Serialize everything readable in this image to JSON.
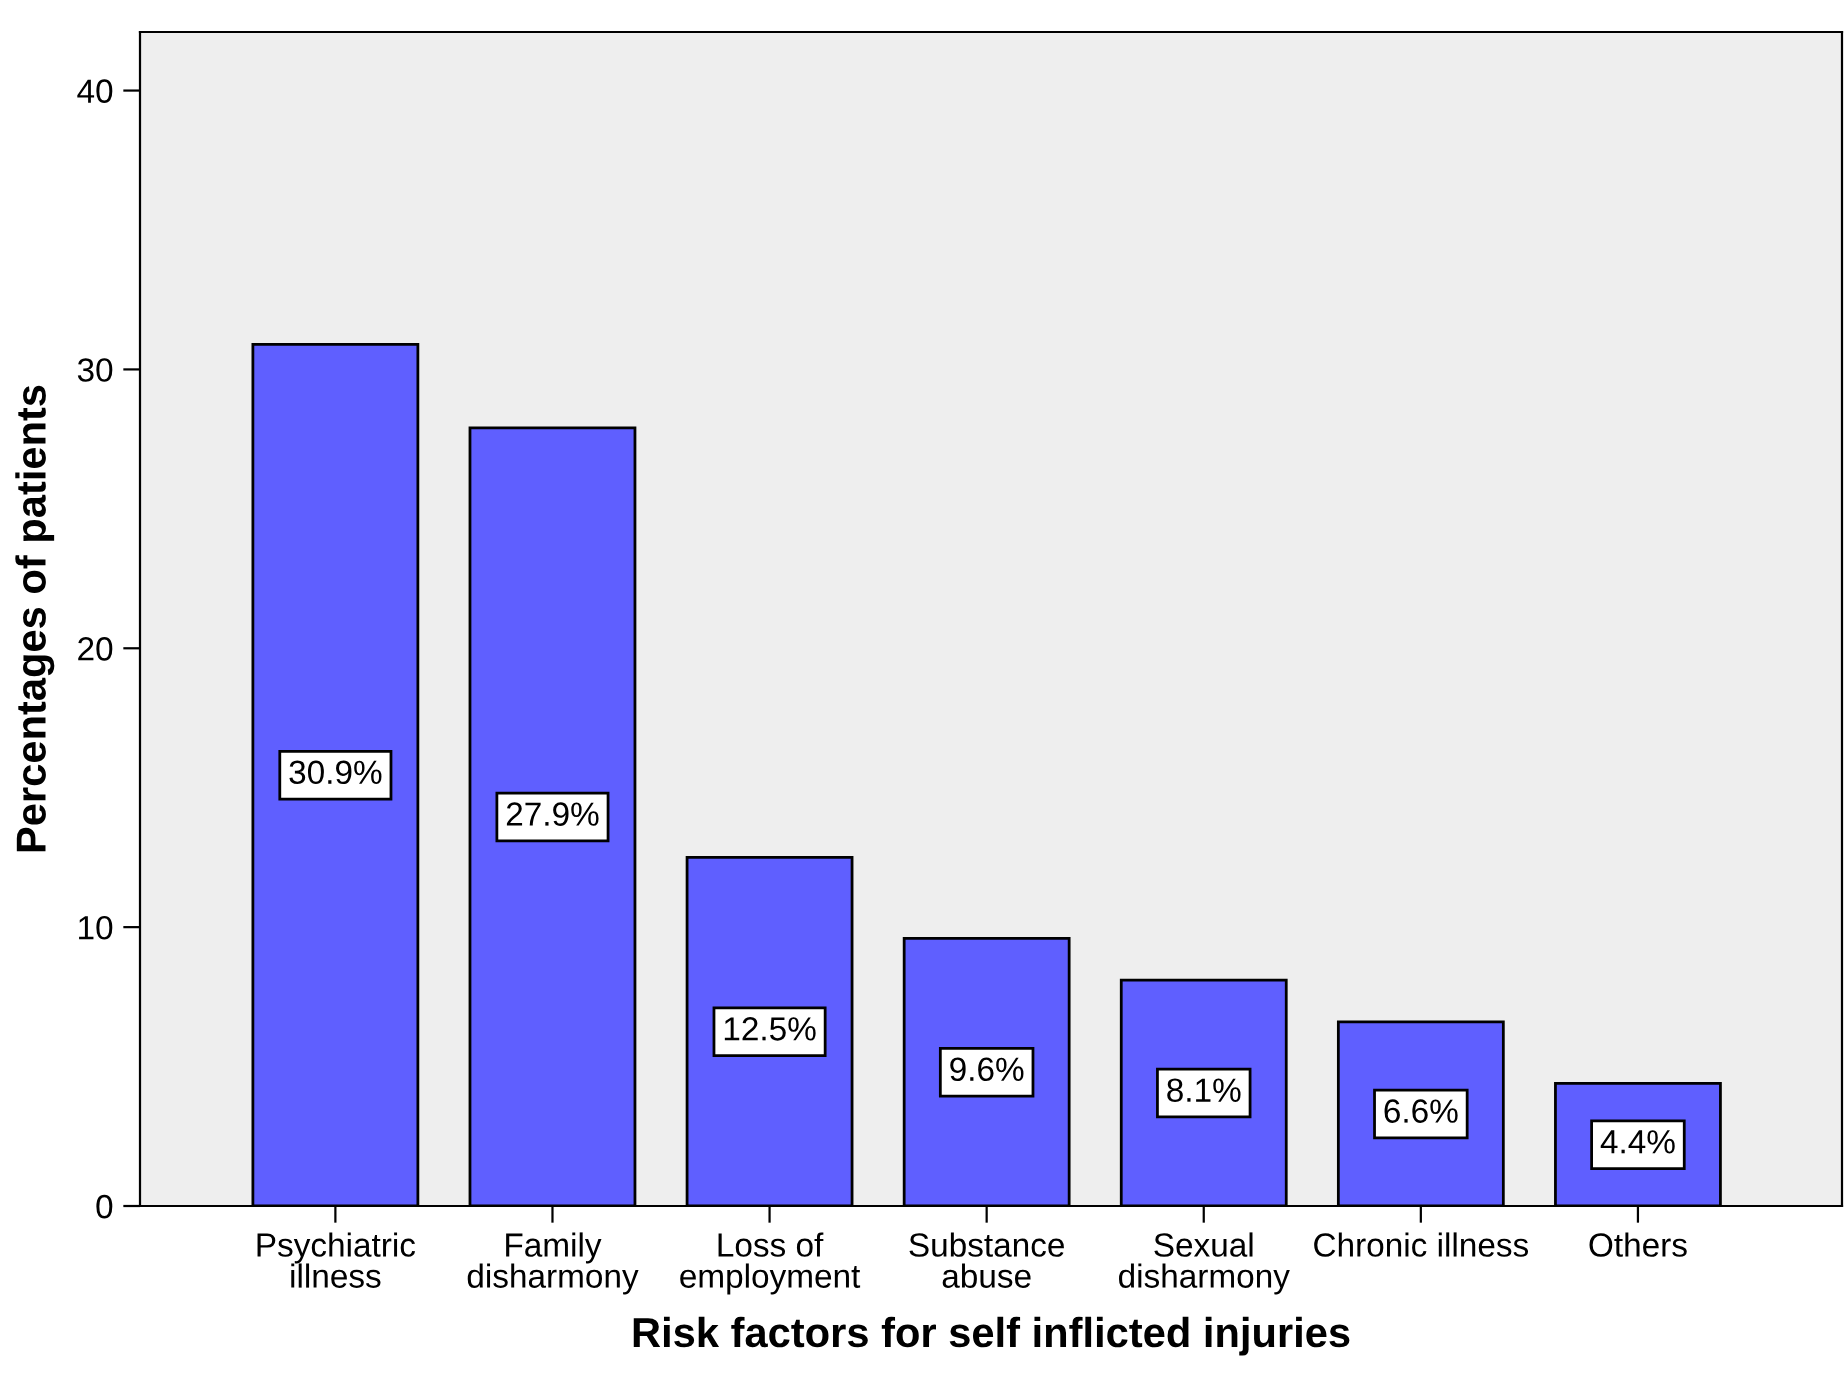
{
  "chart_data": {
    "type": "bar",
    "xlabel": "Risk factors for self inflicted injuries",
    "ylabel": "Percentages of patients",
    "categories": [
      "Psychiatric\nillness",
      "Family\ndisharmony",
      "Loss of\nemployment",
      "Substance\nabuse",
      "Sexual\ndisharmony",
      "Chronic illness",
      "Others"
    ],
    "values": [
      30.9,
      27.9,
      12.5,
      9.6,
      8.1,
      6.6,
      4.4
    ],
    "value_labels": [
      "30.9%",
      "27.9%",
      "12.5%",
      "9.6%",
      "8.1%",
      "6.6%",
      "4.4%"
    ],
    "color": "#5f5fff",
    "ylim": [
      0,
      42.1
    ],
    "yticks": [
      0,
      10,
      20,
      30,
      40
    ],
    "grid": false,
    "legend": false
  }
}
